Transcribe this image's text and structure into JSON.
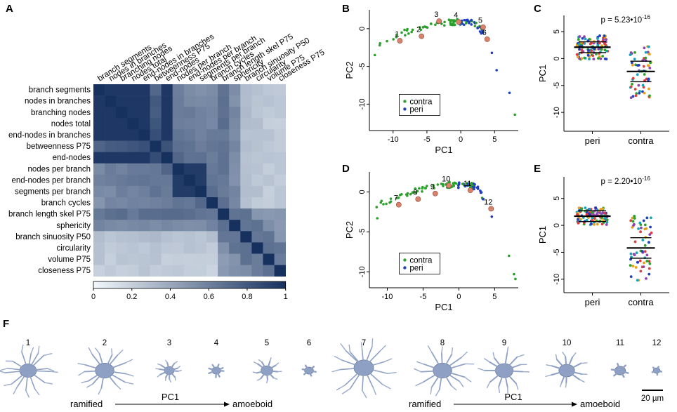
{
  "panels": {
    "A": "A",
    "B": "B",
    "C": "C",
    "D": "D",
    "E": "E",
    "F": "F"
  },
  "colors": {
    "contra": "#2ca02c",
    "peri": "#1f3fbf",
    "highlight": "#d9826b",
    "heat_low": "#f2f8fc",
    "heat_high": "#17315f"
  },
  "chart_data": [
    {
      "id": "A",
      "type": "heatmap",
      "title": "",
      "features": [
        "branch segments",
        "nodes in branches",
        "branching nodes",
        "nodes total",
        "end-nodes in branches",
        "betweenness P75",
        "end-nodes",
        "nodes per branch",
        "end-nodes per branch",
        "segments per branch",
        "branch cycles",
        "branch length skel P75",
        "sphericity",
        "branch sinuosity P50",
        "circularity",
        "volume P75",
        "closeness P75"
      ],
      "colorbar": {
        "min": 0,
        "max": 1,
        "ticks": [
          "0",
          "0.2",
          "0.4",
          "0.6",
          "0.8",
          "1"
        ]
      }
    },
    {
      "id": "B",
      "type": "scatter",
      "xlabel": "PC1",
      "ylabel": "PC2",
      "xticks": [
        "-10",
        "-5",
        "0",
        "5"
      ],
      "yticks": [
        "0",
        "-5",
        "-10"
      ],
      "legend": [
        "contra",
        "peri"
      ],
      "labeled_points": [
        {
          "label": "1",
          "x": -9,
          "y": -1.6
        },
        {
          "label": "2",
          "x": -5.8,
          "y": -1.0
        },
        {
          "label": "3",
          "x": -3.2,
          "y": 1.0
        },
        {
          "label": "4",
          "x": -0.3,
          "y": 0.9
        },
        {
          "label": "5",
          "x": 3.3,
          "y": 0.2
        },
        {
          "label": "6",
          "x": 3.9,
          "y": -1.4
        }
      ]
    },
    {
      "id": "C",
      "type": "scatter",
      "xlabel": "",
      "ylabel": "PC1",
      "categories": [
        "peri",
        "contra"
      ],
      "yticks": [
        "5",
        "0",
        "-5",
        "-10"
      ],
      "annotation": "p = 5.23•10",
      "annotation_exp": "-16",
      "means": [
        2.1,
        -2.4
      ]
    },
    {
      "id": "D",
      "type": "scatter",
      "xlabel": "PC1",
      "ylabel": "PC2",
      "xticks": [
        "-10",
        "-5",
        "0",
        "5"
      ],
      "yticks": [
        "0",
        "-5",
        "-10"
      ],
      "legend": [
        "contra",
        "peri"
      ],
      "labeled_points": [
        {
          "label": "7",
          "x": -8.4,
          "y": -1.6
        },
        {
          "label": "8",
          "x": -5.7,
          "y": -0.9
        },
        {
          "label": "9",
          "x": -3.3,
          "y": -0.2
        },
        {
          "label": "10",
          "x": -1.4,
          "y": 0.8
        },
        {
          "label": "11",
          "x": 1.6,
          "y": 0.2
        },
        {
          "label": "12",
          "x": 4.5,
          "y": -2.1
        }
      ]
    },
    {
      "id": "E",
      "type": "scatter",
      "xlabel": "",
      "ylabel": "PC1",
      "categories": [
        "peri",
        "contra"
      ],
      "yticks": [
        "5",
        "0",
        "-5",
        "-10"
      ],
      "annotation": "p = 2.20•10",
      "annotation_exp": "-16",
      "means": [
        1.7,
        -4.2
      ]
    }
  ],
  "panel_f": {
    "numbers": [
      "1",
      "2",
      "3",
      "4",
      "5",
      "6",
      "7",
      "8",
      "9",
      "10",
      "11",
      "12"
    ],
    "arrow_left": "ramified",
    "arrow_mid": "PC1",
    "arrow_right": "amoeboid",
    "scale_bar": "20 µm"
  }
}
